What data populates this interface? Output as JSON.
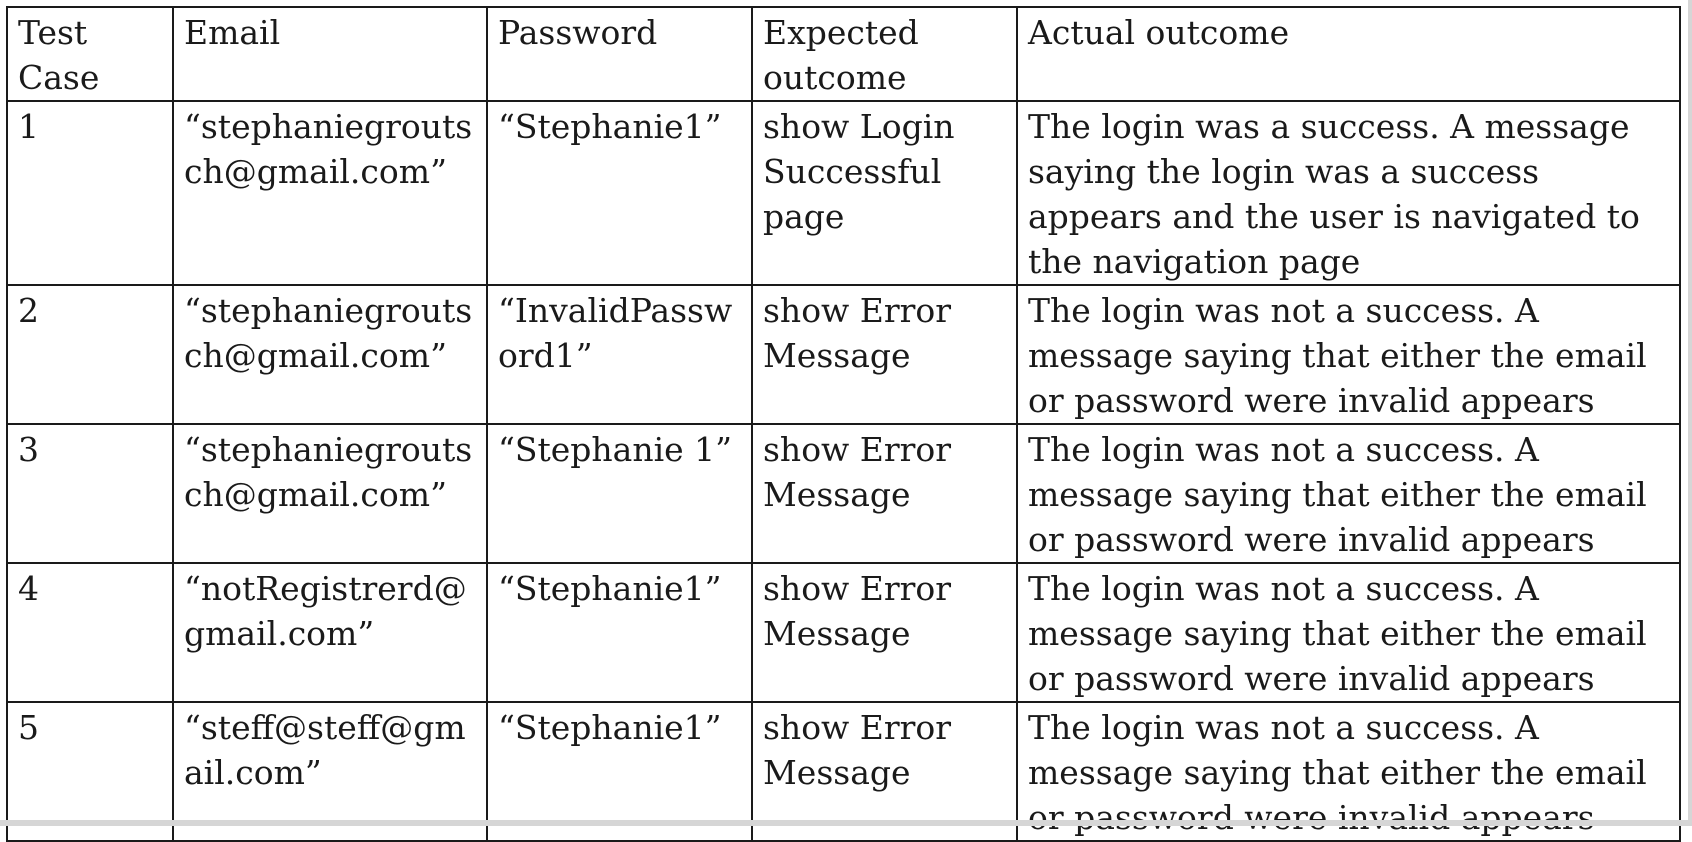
{
  "table": {
    "headers": {
      "test_case": "Test\nCase",
      "email": "Email",
      "password": "Password",
      "expected": "Expected\noutcome",
      "actual": "Actual outcome"
    },
    "rows": [
      {
        "test_case": "1",
        "email": "“stephaniegrouts\nch@gmail.com”",
        "password": "“Stephanie1”",
        "expected": "show Login\nSuccessful\npage",
        "actual": "The login was a success. A message saying the login was a success appears and the user is navigated to the navigation page"
      },
      {
        "test_case": "2",
        "email": "“stephaniegrouts\nch@gmail.com”",
        "password": "“InvalidPassw\nord1”",
        "expected": "show Error\nMessage",
        "actual": "The login was not a success. A message saying that either the email or password were invalid appears"
      },
      {
        "test_case": "3",
        "email": "“stephaniegrouts\nch@gmail.com”",
        "password": "“Stephanie 1”",
        "expected": "show Error\nMessage",
        "actual": "The login was not a success. A message saying that either the email or password were invalid appears"
      },
      {
        "test_case": "4",
        "email": "“notRegistrerd@\ngmail.com”",
        "password": "“Stephanie1”",
        "expected": "show Error\nMessage",
        "actual": "The login was not a success. A message saying that either the email or password were invalid appears"
      },
      {
        "test_case": "5",
        "email": "“steff@steff@gm\nail.com”",
        "password": "“Stephanie1”",
        "expected": "show Error\nMessage",
        "actual": "The login was not a success. A message saying that either the email or password were invalid appears"
      }
    ]
  }
}
